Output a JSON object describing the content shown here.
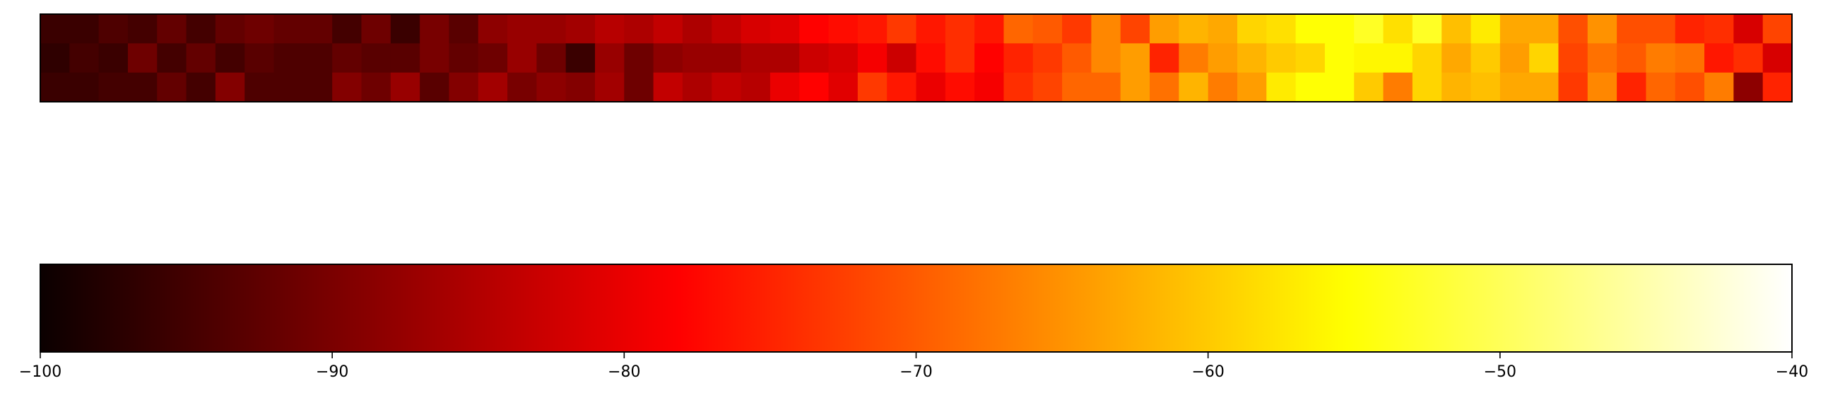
{
  "chart_data": {
    "type": "heatmap",
    "title": "",
    "xlabel": "",
    "ylabel": "",
    "colormap": "hot",
    "heatmap": {
      "rows": 3,
      "cols": 60,
      "values": [
        [
          -97,
          -97,
          -95,
          -96,
          -93,
          -96,
          -93,
          -92,
          -93,
          -93,
          -96,
          -92,
          -97,
          -91,
          -94,
          -89,
          -88,
          -88,
          -87,
          -85,
          -86,
          -84,
          -86,
          -84,
          -82,
          -81,
          -78,
          -77,
          -76,
          -73,
          -76,
          -74,
          -76,
          -69,
          -70,
          -73,
          -66,
          -72,
          -64,
          -62,
          -63,
          -59,
          -58,
          -55,
          -55,
          -53,
          -58,
          -53,
          -61,
          -57,
          -63,
          -63,
          -71,
          -65,
          -71,
          -71,
          -75,
          -74,
          -82,
          -72
        ],
        [
          -98,
          -96,
          -97,
          -92,
          -96,
          -93,
          -96,
          -94,
          -95,
          -95,
          -93,
          -94,
          -94,
          -91,
          -93,
          -92,
          -88,
          -92,
          -97,
          -88,
          -92,
          -89,
          -88,
          -88,
          -86,
          -86,
          -83,
          -82,
          -79,
          -83,
          -77,
          -74,
          -78,
          -75,
          -73,
          -70,
          -66,
          -64,
          -75,
          -67,
          -64,
          -62,
          -60,
          -59,
          -55,
          -56,
          -56,
          -59,
          -63,
          -60,
          -64,
          -59,
          -72,
          -68,
          -70,
          -67,
          -68,
          -76,
          -74,
          -82
        ],
        [
          -97,
          -97,
          -96,
          -96,
          -93,
          -96,
          -90,
          -95,
          -95,
          -95,
          -90,
          -92,
          -88,
          -94,
          -90,
          -87,
          -91,
          -89,
          -90,
          -87,
          -92,
          -84,
          -86,
          -84,
          -85,
          -80,
          -78,
          -81,
          -73,
          -76,
          -80,
          -77,
          -79,
          -74,
          -72,
          -69,
          -69,
          -64,
          -68,
          -62,
          -67,
          -64,
          -57,
          -55,
          -55,
          -60,
          -67,
          -59,
          -62,
          -61,
          -63,
          -63,
          -73,
          -66,
          -75,
          -69,
          -71,
          -67,
          -89,
          -75
        ]
      ]
    },
    "colorbar": {
      "min": -100,
      "max": -40,
      "ticks": [
        -100,
        -90,
        -80,
        -70,
        -60,
        -50,
        -40
      ],
      "tick_labels": [
        "−100",
        "−90",
        "−80",
        "−70",
        "−60",
        "−50",
        "−40"
      ]
    }
  }
}
